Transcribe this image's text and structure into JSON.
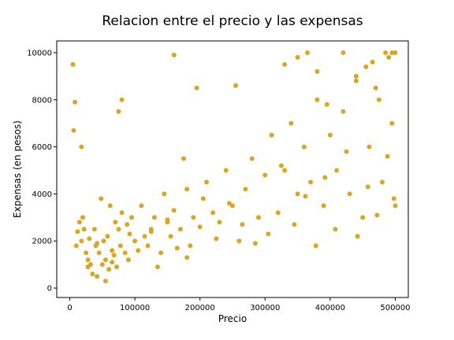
{
  "chart_data": {
    "type": "scatter",
    "title": "Relacion entre el precio y las expensas",
    "xlabel": "Precio",
    "ylabel": "Expensas (en pesos)",
    "xlim": [
      -20000,
      520000
    ],
    "ylim": [
      -400,
      10500
    ],
    "xticks": [
      0,
      100000,
      200000,
      300000,
      400000,
      500000
    ],
    "yticks": [
      0,
      2000,
      4000,
      6000,
      8000,
      10000
    ],
    "grid": false,
    "legend": "none",
    "marker_color": "#DAA520",
    "series": [
      {
        "x": [
          5000,
          6000,
          8000,
          10000,
          15000,
          18000,
          20000,
          22000,
          25000,
          28000,
          30000,
          32000,
          35000,
          38000,
          40000,
          42000,
          45000,
          48000,
          50000,
          52000,
          55000,
          58000,
          60000,
          62000,
          65000,
          68000,
          70000,
          72000,
          75000,
          78000,
          80000,
          85000,
          88000,
          90000,
          95000,
          100000,
          110000,
          115000,
          120000,
          125000,
          130000,
          140000,
          145000,
          150000,
          155000,
          160000,
          170000,
          180000,
          185000,
          190000,
          200000,
          210000,
          220000,
          230000,
          240000,
          250000,
          260000,
          270000,
          280000,
          290000,
          300000,
          310000,
          320000,
          330000,
          340000,
          350000,
          360000,
          370000,
          380000,
          390000,
          400000,
          410000,
          420000,
          430000,
          440000,
          450000,
          460000,
          470000,
          480000,
          490000,
          495000,
          500000,
          75000,
          80000,
          160000,
          175000,
          195000,
          255000,
          330000,
          350000,
          365000,
          380000,
          395000,
          420000,
          440000,
          455000,
          465000,
          475000,
          485000,
          495000,
          500000,
          12000,
          18000,
          28000,
          42000,
          55000,
          65000,
          92000,
          105000,
          125000,
          135000,
          150000,
          165000,
          180000,
          205000,
          225000,
          245000,
          265000,
          285000,
          305000,
          325000,
          345000,
          362000,
          378000,
          392000,
          408000,
          425000,
          442000,
          458000,
          472000,
          488000,
          498000
        ],
        "y": [
          9500,
          6700,
          7900,
          1800,
          2800,
          6000,
          3000,
          2500,
          1500,
          1200,
          2100,
          1000,
          600,
          2500,
          1800,
          500,
          1500,
          3800,
          1000,
          2000,
          300,
          2200,
          800,
          3500,
          1600,
          1400,
          2800,
          900,
          2500,
          1800,
          3200,
          1500,
          2700,
          1200,
          3000,
          2000,
          3500,
          2200,
          1800,
          2500,
          3000,
          1500,
          4000,
          2800,
          2200,
          3300,
          2500,
          4200,
          1800,
          3000,
          2600,
          4500,
          3200,
          2800,
          5000,
          3500,
          2000,
          4200,
          5500,
          3000,
          4800,
          6500,
          3200,
          5000,
          7000,
          4000,
          6000,
          4500,
          8000,
          3500,
          6500,
          5000,
          7500,
          4000,
          9000,
          3000,
          6000,
          8500,
          4500,
          9800,
          7000,
          10000,
          7500,
          8000,
          9900,
          5500,
          8500,
          8600,
          9500,
          9800,
          10000,
          9200,
          7800,
          10000,
          8800,
          9400,
          9600,
          8000,
          10000,
          10000,
          3500,
          2400,
          2000,
          900,
          1900,
          1200,
          1100,
          2300,
          1600,
          2400,
          900,
          2900,
          1700,
          1300,
          3800,
          2100,
          3600,
          2700,
          1900,
          2300,
          5200,
          2700,
          3900,
          1800,
          4700,
          2500,
          5800,
          2200,
          4300,
          3100,
          5600,
          3800
        ]
      }
    ]
  }
}
